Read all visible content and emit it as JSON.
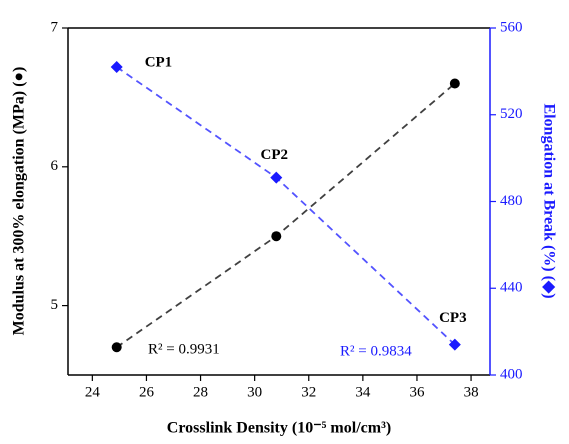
{
  "chart_data": {
    "type": "scatter",
    "x_label": "Crosslink Density (10⁻⁵ mol/cm³)",
    "y_label": "Modulus at 300% elongation (MPa) (●)",
    "y2_label": "Elongation at Break (%) (◆)",
    "xlim": [
      23.1,
      38.7
    ],
    "xticks": [
      24,
      26,
      28,
      30,
      32,
      34,
      36,
      38
    ],
    "ylim": [
      4.5,
      7
    ],
    "yticks": [
      5,
      6,
      7
    ],
    "y2lim": [
      400,
      560
    ],
    "y2ticks": [
      400,
      440,
      480,
      520,
      560
    ],
    "point_labels": [
      "CP1",
      "CP2",
      "CP3"
    ],
    "series": [
      {
        "color": "#000000",
        "marker": "circle",
        "x": [
          24.9,
          30.8,
          37.4
        ],
        "values": [
          4.7,
          5.5,
          6.6
        ],
        "fit_label": "R² = 0.9931"
      },
      {
        "color": "#1a1aff",
        "marker": "diamond",
        "axis": "y2",
        "x": [
          24.9,
          30.8,
          37.4
        ],
        "values": [
          542,
          491,
          414
        ],
        "fit_label": "R² = 0.9834"
      }
    ]
  }
}
